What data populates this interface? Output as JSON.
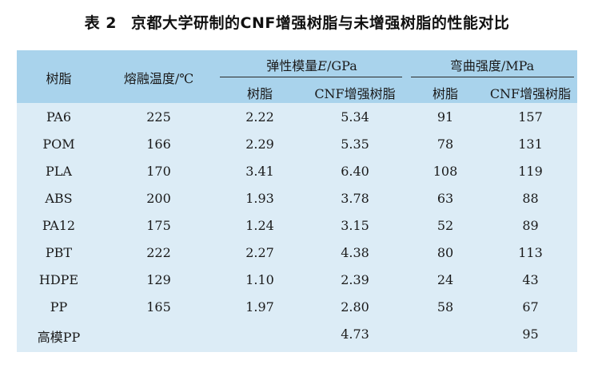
{
  "title": {
    "number": "表 2",
    "text": "京都大学研制的CNF增强树脂与未增强树脂的性能对比"
  },
  "header": {
    "resin": "树脂",
    "melt_temp": "熔融温度/℃",
    "modulus_prefix": "弹性模量",
    "modulus_symbol": "E",
    "modulus_unit": "/GPa",
    "strength": "弯曲强度/MPa",
    "sub_resin_1": "树脂",
    "sub_cnf_1": "CNF增强树脂",
    "sub_resin_2": "树脂",
    "sub_cnf_2": "CNF增强树脂"
  },
  "rows": [
    {
      "resin": "PA6",
      "melt": "225",
      "mod_resin": "2.22",
      "mod_cnf": "5.34",
      "str_resin": "91",
      "str_cnf": "157"
    },
    {
      "resin": "POM",
      "melt": "166",
      "mod_resin": "2.29",
      "mod_cnf": "5.35",
      "str_resin": "78",
      "str_cnf": "131"
    },
    {
      "resin": "PLA",
      "melt": "170",
      "mod_resin": "3.41",
      "mod_cnf": "6.40",
      "str_resin": "108",
      "str_cnf": "119"
    },
    {
      "resin": "ABS",
      "melt": "200",
      "mod_resin": "1.93",
      "mod_cnf": "3.78",
      "str_resin": "63",
      "str_cnf": "88"
    },
    {
      "resin": "PA12",
      "melt": "175",
      "mod_resin": "1.24",
      "mod_cnf": "3.15",
      "str_resin": "52",
      "str_cnf": "89"
    },
    {
      "resin": "PBT",
      "melt": "222",
      "mod_resin": "2.27",
      "mod_cnf": "4.38",
      "str_resin": "80",
      "str_cnf": "113"
    },
    {
      "resin": "HDPE",
      "melt": "129",
      "mod_resin": "1.10",
      "mod_cnf": "2.39",
      "str_resin": "24",
      "str_cnf": "43"
    },
    {
      "resin": "PP",
      "melt": "165",
      "mod_resin": "1.97",
      "mod_cnf": "2.80",
      "str_resin": "58",
      "str_cnf": "67"
    },
    {
      "resin": "高模PP",
      "melt": "",
      "mod_resin": "",
      "mod_cnf": "4.73",
      "str_resin": "",
      "str_cnf": "95"
    }
  ],
  "colors": {
    "header_bg": "#a9d3ec",
    "body_bg": "#dcecf6"
  }
}
